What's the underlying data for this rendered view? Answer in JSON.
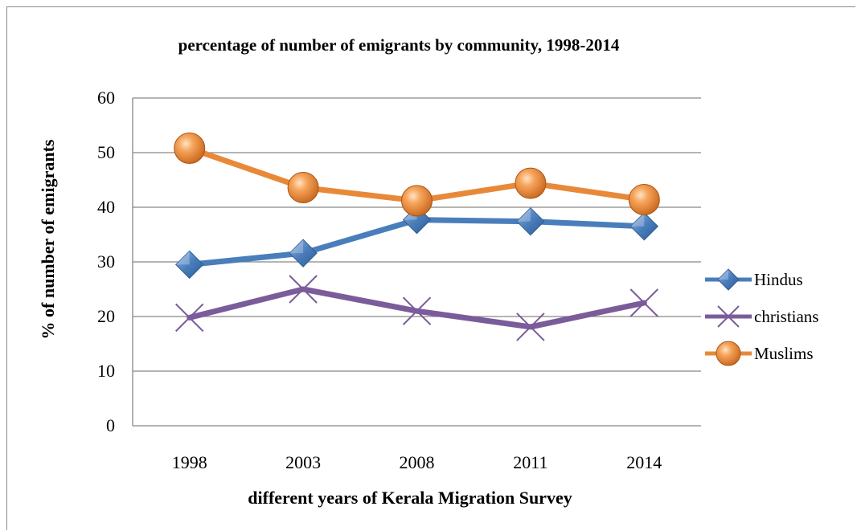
{
  "chart_data": {
    "type": "line",
    "title": "percentage of number of emigrants by community, 1998-2014",
    "xlabel": "different years of Kerala Migration Survey",
    "ylabel": "% of number of emigrants",
    "categories": [
      "1998",
      "2003",
      "2008",
      "2011",
      "2014"
    ],
    "ylim": [
      0,
      60
    ],
    "yticks": [
      0,
      10,
      20,
      30,
      40,
      50,
      60
    ],
    "grid": true,
    "legend_position": "right",
    "series": [
      {
        "name": "Hindus",
        "values": [
          29.5,
          31.6,
          37.7,
          37.4,
          36.5
        ],
        "color": "#4a7ebb",
        "marker": "diamond"
      },
      {
        "name": "christians",
        "values": [
          19.8,
          25.0,
          21.0,
          18.1,
          22.5
        ],
        "color": "#7b5c9a",
        "marker": "x"
      },
      {
        "name": "Muslims",
        "values": [
          50.8,
          43.6,
          41.2,
          44.4,
          41.4
        ],
        "color": "#e8893a",
        "marker": "circle"
      }
    ]
  }
}
